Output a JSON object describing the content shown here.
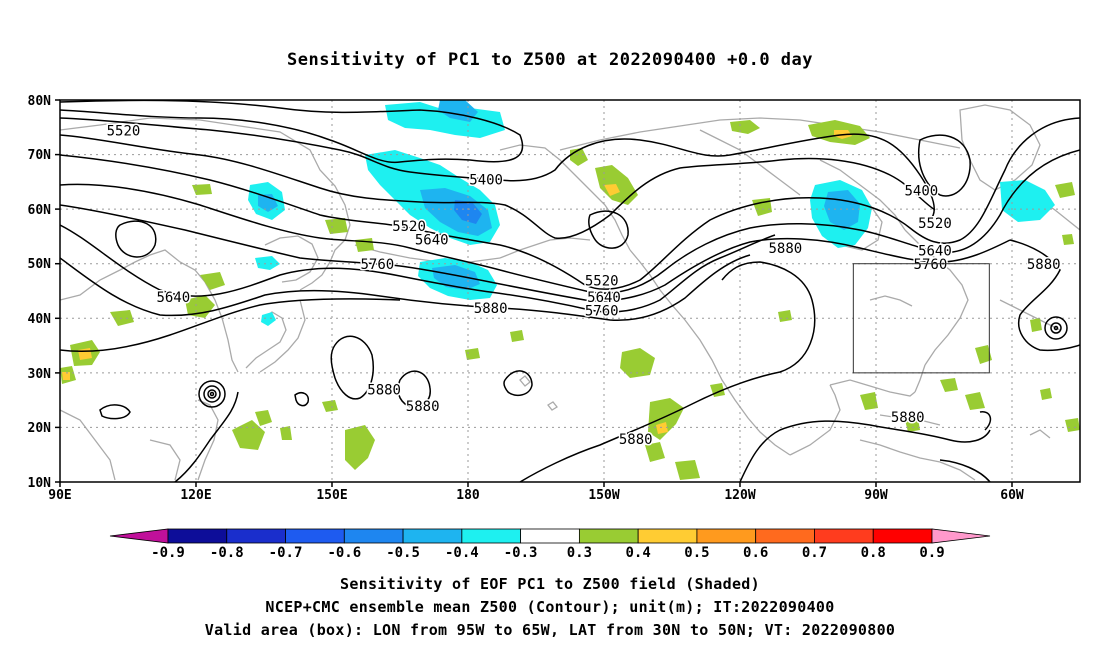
{
  "title": "Sensitivity of PC1 to Z500 at 2022090400 +0.0 day",
  "lat_labels": [
    "80N",
    "70N",
    "60N",
    "50N",
    "40N",
    "30N",
    "20N",
    "10N"
  ],
  "lon_labels": [
    "90E",
    "120E",
    "150E",
    "180",
    "150W",
    "120W",
    "90W",
    "60W"
  ],
  "contour_labels": [
    {
      "text": "5520",
      "lon": 104,
      "lat": 73.5
    },
    {
      "text": "5400",
      "lon": 184,
      "lat": 64.5
    },
    {
      "text": "5520",
      "lon": 167,
      "lat": 56
    },
    {
      "text": "5640",
      "lon": 172,
      "lat": 53.5
    },
    {
      "text": "5760",
      "lon": 160,
      "lat": 49
    },
    {
      "text": "5640",
      "lon": 115,
      "lat": 43
    },
    {
      "text": "5880",
      "lon": 185,
      "lat": 41
    },
    {
      "text": "5520",
      "lon": -150.5,
      "lat": 46
    },
    {
      "text": "5640",
      "lon": -150,
      "lat": 43
    },
    {
      "text": "5760",
      "lon": -150.5,
      "lat": 40.5
    },
    {
      "text": "5880",
      "lon": -110,
      "lat": 52
    },
    {
      "text": "5400",
      "lon": -80,
      "lat": 62.5
    },
    {
      "text": "5520",
      "lon": -77,
      "lat": 56.5
    },
    {
      "text": "5640",
      "lon": -77,
      "lat": 51.5
    },
    {
      "text": "5760",
      "lon": -78,
      "lat": 49
    },
    {
      "text": "5880",
      "lon": -53,
      "lat": 49
    },
    {
      "text": "5880",
      "lon": 161.5,
      "lat": 26
    },
    {
      "text": "5880",
      "lon": 170,
      "lat": 23
    },
    {
      "text": "5880",
      "lon": -143,
      "lat": 17
    },
    {
      "text": "5880",
      "lon": -83,
      "lat": 21
    }
  ],
  "valid_box": {
    "lon_min": -95,
    "lon_max": -65,
    "lat_min": 30,
    "lat_max": 50
  },
  "colorbar": {
    "labels": [
      "-0.9",
      "-0.8",
      "-0.7",
      "-0.6",
      "-0.5",
      "-0.4",
      "-0.3",
      "0.3",
      "0.4",
      "0.5",
      "0.6",
      "0.7",
      "0.8",
      "0.9"
    ],
    "colors": [
      "#0d0d99",
      "#1a2ecc",
      "#1e5bf0",
      "#1e86f0",
      "#1eb4f0",
      "#1ef0f0",
      "#ffffff",
      "#99cc33",
      "#ffcc33",
      "#ff9a1e",
      "#ff6a1e",
      "#ff3c1e",
      "#ff0000"
    ],
    "low_color": "#c0109a",
    "high_color": "#ff99cc"
  },
  "caption": {
    "line1": "Sensitivity of EOF PC1 to Z500 field (Shaded)",
    "line2": "NCEP+CMC ensemble mean Z500 (Contour); unit(m); IT:2022090400",
    "line3": "Valid area (box): LON from 95W to 65W, LAT from 30N to 50N; VT: 2022090800"
  }
}
